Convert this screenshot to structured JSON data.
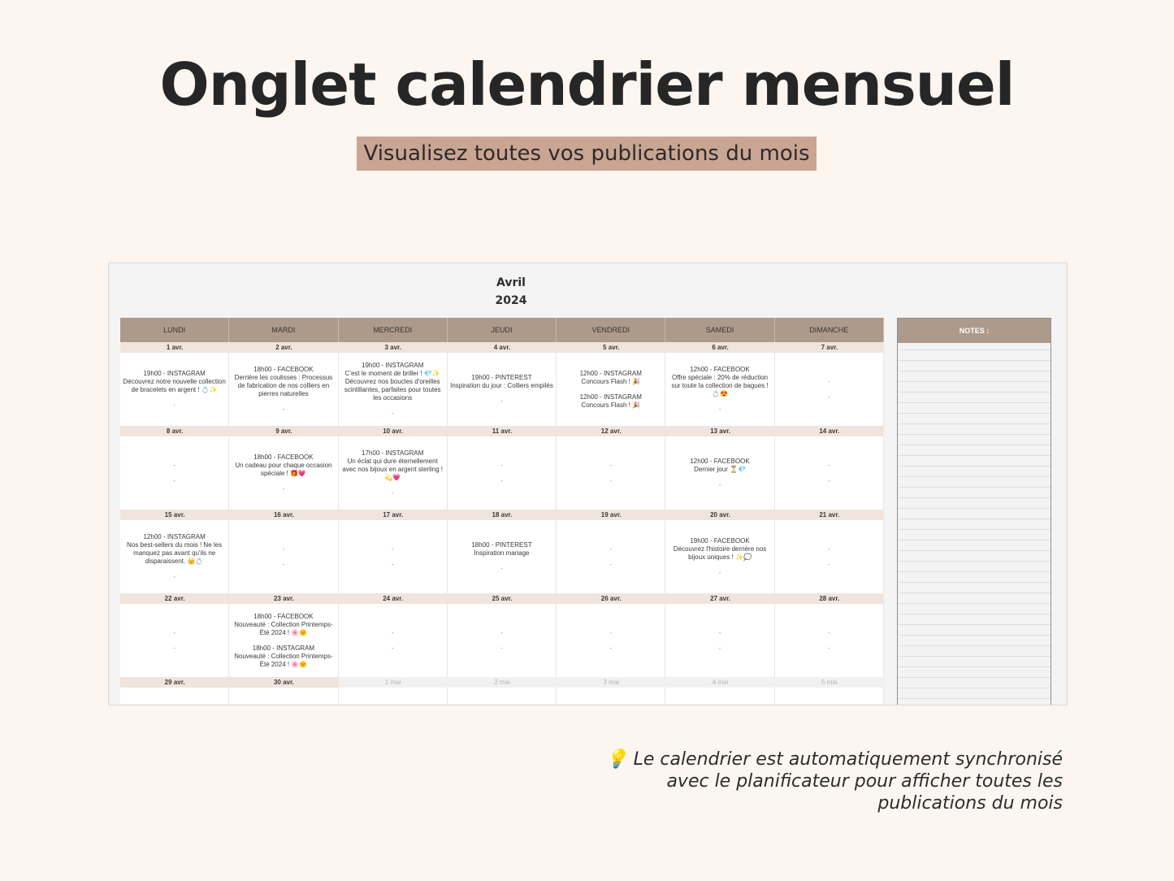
{
  "heading": "Onglet calendrier mensuel",
  "subtitle": "Visualisez toutes vos publications du mois",
  "calendar": {
    "month": "Avril",
    "year": "2024",
    "days": [
      "LUNDI",
      "MARDI",
      "MERCREDI",
      "JEUDI",
      "VENDREDI",
      "SAMEDI",
      "DIMANCHE"
    ],
    "notes_label": "NOTES :",
    "weeks": [
      {
        "dates": [
          "1 avr.",
          "2 avr.",
          "3 avr.",
          "4 avr.",
          "5 avr.",
          "6 avr.",
          "7 avr."
        ],
        "cells": [
          [
            {
              "title": "19h00 - INSTAGRAM",
              "text": "Découvrez notre nouvelle collection de bracelets en argent ! 💍✨"
            },
            {
              "dash": "-"
            }
          ],
          [
            {
              "title": "18h00 - FACEBOOK",
              "text": "Derrière les coulisses : Processus de fabrication de nos colliers en pierres naturelles"
            },
            {
              "dash": "-"
            }
          ],
          [
            {
              "title": "19h00 - INSTAGRAM",
              "text": "C'est le moment de briller ! 💎✨ Découvrez nos boucles d'oreilles scintillantes, parfaites pour toutes les occasions"
            },
            {
              "dash": "-"
            }
          ],
          [
            {
              "title": "19h00 - PINTEREST",
              "text": "Inspiration du jour : Colliers empilés"
            },
            {
              "dash": "-"
            }
          ],
          [
            {
              "title": "12h00 - INSTAGRAM",
              "text": "Concours Flash ! 🎉"
            },
            {
              "title": "12h00 - INSTAGRAM",
              "text": "Concours Flash ! 🎉"
            }
          ],
          [
            {
              "title": "12h00 - FACEBOOK",
              "text": "Offre spéciale : 20% de réduction sur toute la collection de bagues ! 💍😍"
            },
            {
              "dash": "-"
            }
          ],
          [
            {
              "dash": "-"
            },
            {
              "dash": "-"
            }
          ]
        ]
      },
      {
        "dates": [
          "8 avr.",
          "9 avr.",
          "10 avr.",
          "11 avr.",
          "12 avr.",
          "13 avr.",
          "14 avr."
        ],
        "cells": [
          [
            {
              "dash": "-"
            },
            {
              "dash": "-"
            }
          ],
          [
            {
              "title": "18h00 - FACEBOOK",
              "text": "Un cadeau pour chaque occasion spéciale ! 🎁💗"
            },
            {
              "dash": "-"
            }
          ],
          [
            {
              "title": "17h00 - INSTAGRAM",
              "text": "Un éclat qui dure éternellement avec nos bijoux en argent sterling ! 💫💗"
            },
            {
              "dash": "-"
            }
          ],
          [
            {
              "dash": "-"
            },
            {
              "dash": "-"
            }
          ],
          [
            {
              "dash": "-"
            },
            {
              "dash": "-"
            }
          ],
          [
            {
              "title": "12h00 - FACEBOOK",
              "text": "Dernier jour ⏳💎"
            },
            {
              "dash": "-"
            }
          ],
          [
            {
              "dash": "-"
            },
            {
              "dash": "-"
            }
          ]
        ]
      },
      {
        "dates": [
          "15 avr.",
          "16 avr.",
          "17 avr.",
          "18 avr.",
          "19 avr.",
          "20 avr.",
          "21 avr."
        ],
        "cells": [
          [
            {
              "title": "12h00 - INSTAGRAM",
              "text": "Nos best-sellers du mois ! Ne les manquez pas avant qu'ils ne disparaissent. 👑💍"
            },
            {
              "dash": "-"
            }
          ],
          [
            {
              "dash": "-"
            },
            {
              "dash": "-"
            }
          ],
          [
            {
              "dash": "-"
            },
            {
              "dash": "-"
            }
          ],
          [
            {
              "title": "18h00 - PINTEREST",
              "text": "Inspiration mariage"
            },
            {
              "dash": "-"
            }
          ],
          [
            {
              "dash": "-"
            },
            {
              "dash": "-"
            }
          ],
          [
            {
              "title": "19h00 - FACEBOOK",
              "text": "Découvrez l'histoire derrière nos bijoux uniques ! ✨💭"
            },
            {
              "dash": "-"
            }
          ],
          [
            {
              "dash": "-"
            },
            {
              "dash": "-"
            }
          ]
        ]
      },
      {
        "dates": [
          "22 avr.",
          "23 avr.",
          "24 avr.",
          "25 avr.",
          "26 avr.",
          "27 avr.",
          "28 avr."
        ],
        "cells": [
          [
            {
              "dash": "-"
            },
            {
              "dash": "-"
            }
          ],
          [
            {
              "title": "18h00 - FACEBOOK",
              "text": "Nouveauté : Collection Printemps-Été 2024 ! 🌸🌞"
            },
            {
              "title": "18h00 - INSTAGRAM",
              "text": "Nouveauté : Collection Printemps-Été 2024 ! 🌸🌞"
            }
          ],
          [
            {
              "dash": "-"
            },
            {
              "dash": "-"
            }
          ],
          [
            {
              "dash": "-"
            },
            {
              "dash": "-"
            }
          ],
          [
            {
              "dash": "-"
            },
            {
              "dash": "-"
            }
          ],
          [
            {
              "dash": "-"
            },
            {
              "dash": "-"
            }
          ],
          [
            {
              "dash": "-"
            },
            {
              "dash": "-"
            }
          ]
        ]
      },
      {
        "dates": [
          "29 avr.",
          "30 avr.",
          "1 mai",
          "2 mai",
          "3 mai",
          "4 mai",
          "5 mai"
        ],
        "other_month": [
          false,
          false,
          true,
          true,
          true,
          true,
          true
        ],
        "cells": [
          [],
          [],
          [],
          [],
          [],
          [],
          []
        ]
      }
    ]
  },
  "tip": {
    "icon": "lightbulb-icon",
    "emoji": "💡",
    "text": "Le calendrier est automatiquement synchronisé avec le planificateur pour afficher toutes les publications du mois"
  }
}
